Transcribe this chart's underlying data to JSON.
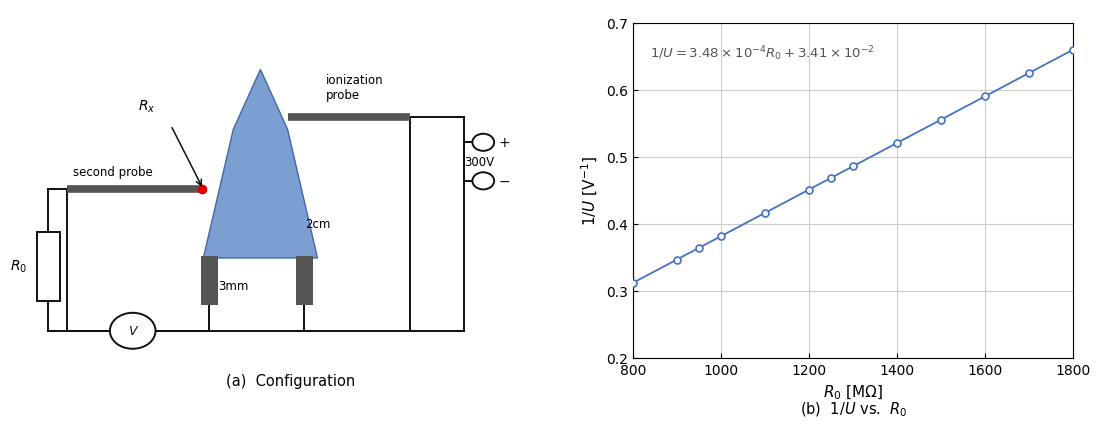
{
  "graph": {
    "x_data": [
      800,
      900,
      950,
      1000,
      1100,
      1200,
      1250,
      1300,
      1400,
      1500,
      1600,
      1700,
      1800
    ],
    "slope": 0.000348,
    "intercept": 0.0341,
    "xlim": [
      800,
      1800
    ],
    "ylim": [
      0.2,
      0.7
    ],
    "xticks": [
      800,
      1000,
      1200,
      1400,
      1600,
      1800
    ],
    "yticks": [
      0.2,
      0.3,
      0.4,
      0.5,
      0.6,
      0.7
    ],
    "xlabel": "$R_0$ [MΩ]",
    "ylabel": "$1/U$ [V$^{-1}$]",
    "caption_b": "(b)  $1/U$ vs.  $R_0$",
    "equation": "$1/U = 3.48 \\times 10^{-4}R_0 + 3.41 \\times 10^{-2}$",
    "line_color": "#4472C4",
    "marker_size": 5,
    "grid_color": "#CCCCCC"
  },
  "diagram": {
    "caption_a": "(a)  Configuration",
    "flame_color": "#7B9FD0",
    "flame_edge_color": "#4466AA",
    "electrode_color": "#555555",
    "wire_color": "#111111",
    "label_Rx": "$R_x$",
    "label_second_probe": "second probe",
    "label_ionization": "ionization\nprobe",
    "label_2cm": "2cm",
    "label_3mm": "3mm",
    "label_300V": "300V",
    "label_R0": "$R_0$",
    "probe_dot_color": "#DD0000"
  }
}
